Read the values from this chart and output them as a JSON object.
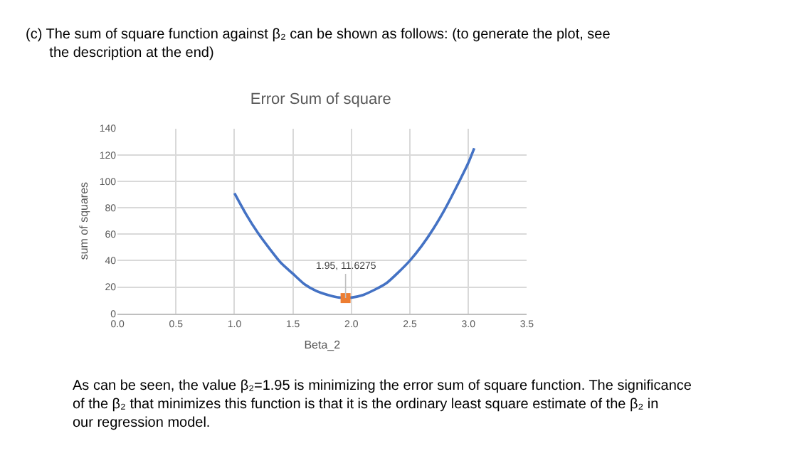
{
  "chart_data": {
    "type": "line",
    "title": "Error Sum of square",
    "xlabel": "Beta_2",
    "ylabel": "sum of squares",
    "series": [
      {
        "color": "#4472c4",
        "marker": "none",
        "x": [
          1.0,
          1.1,
          1.2,
          1.3,
          1.4,
          1.5,
          1.6,
          1.7,
          1.8,
          1.9,
          1.95,
          2.0,
          2.1,
          2.2,
          2.3,
          2.4,
          2.5,
          2.6,
          2.7,
          2.8,
          2.9,
          3.0,
          3.05
        ],
        "values": [
          91,
          75,
          61,
          49,
          38,
          30,
          22,
          17,
          14,
          12,
          12,
          12,
          14,
          18,
          23,
          31,
          40,
          51,
          64,
          79,
          96,
          114,
          125
        ]
      },
      {
        "type": "scatter",
        "color": "#ed7d31",
        "marker": "square",
        "x": [
          1.95
        ],
        "values": [
          11.6275
        ]
      }
    ],
    "xlim": [
      0,
      3.5
    ],
    "xticks": [
      {
        "value": 0,
        "label": "0.0"
      },
      0.5,
      {
        "value": 1,
        "label": "1.0"
      },
      1.5,
      {
        "value": 2,
        "label": "2.0"
      },
      2.5,
      {
        "value": 3,
        "label": "3.0"
      },
      3.5
    ],
    "ylim": [
      0,
      140
    ],
    "yticks": [
      0,
      20,
      40,
      60,
      80,
      100,
      120,
      140
    ],
    "grid": true,
    "annotations": [
      {
        "text": "1.95, 11.6275",
        "x": 1.95,
        "y": 11.6275
      },
      "(c) The sum of square function against β₂ can be shown as follows: (to generate the plot, see the description at the end)",
      "As can be seen, the value β₂=1.95 is minimizing the error sum of square function. The significance of the β₂ that minimizes this function is that it is the ordinary least square estimate of the β₂ in our regression model."
    ]
  }
}
